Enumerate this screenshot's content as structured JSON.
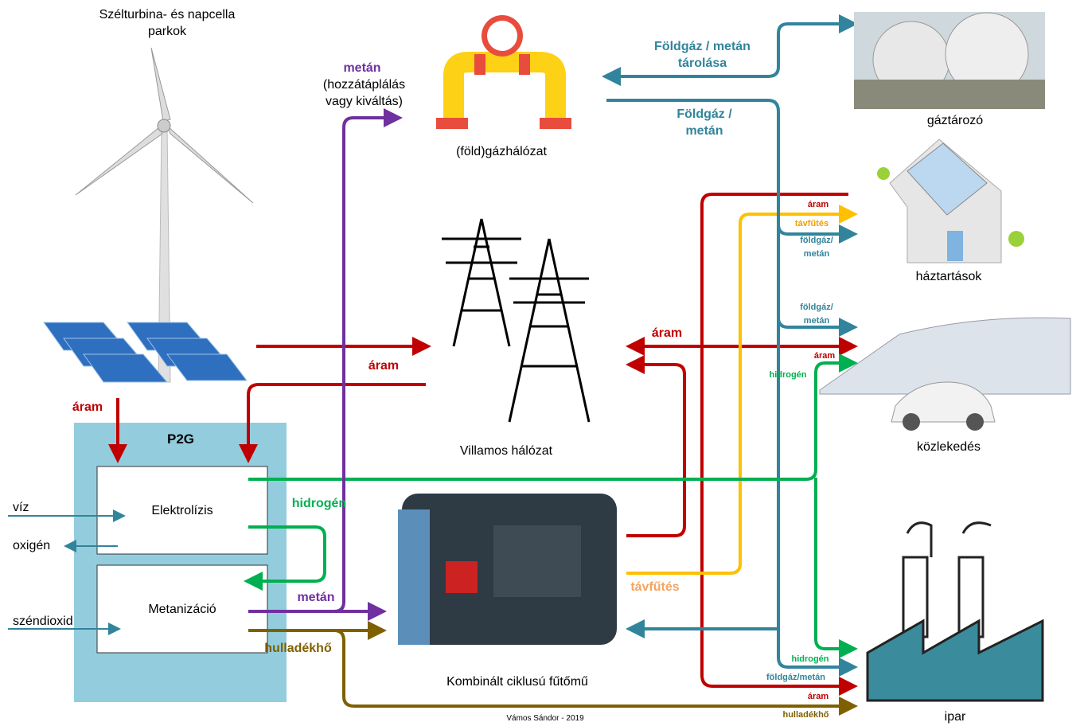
{
  "nodes": {
    "renewables": "Szélturbina- és napcella parkok",
    "gas_network": "(föld)gázhálózat",
    "gas_storage": "gáztározó",
    "households": "háztartások",
    "power_grid": "Villamos hálózat",
    "transport": "közlekedés",
    "chp_plant": "Kombinált ciklusú fűtőmű",
    "industry": "ipar",
    "p2g": "P2G",
    "electrolysis": "Elektrolízis",
    "methanation": "Metanizáció"
  },
  "inputs": {
    "water": "víz",
    "oxygen": "oxigén",
    "co2": "széndioxid"
  },
  "flows": {
    "power_to_p2g": "áram",
    "grid_to_p2g": "áram",
    "methane_feed": "metán",
    "methane_feed_note": "(hozzátáplálás vagy kiváltás)",
    "gas_storage_flow": "Földgáz / metán tárolása",
    "gas_supply": "Földgáz / metán",
    "grid_power": "áram",
    "hydrogen": "hidrogén",
    "methane": "metán",
    "waste_heat": "hulladékhő",
    "district_heating": "távfűtés",
    "households_power": "áram",
    "households_heating": "távfűtés",
    "households_gas": "földgáz/ metán",
    "transport_gas": "földgáz/ metán",
    "transport_power": "áram",
    "transport_hydrogen": "hidrogén",
    "industry_hydrogen": "hidrogén",
    "industry_gas": "földgáz/metán",
    "industry_power": "áram",
    "industry_waste_heat": "hulladékhő"
  },
  "credit": "Vámos Sándor - 2019"
}
